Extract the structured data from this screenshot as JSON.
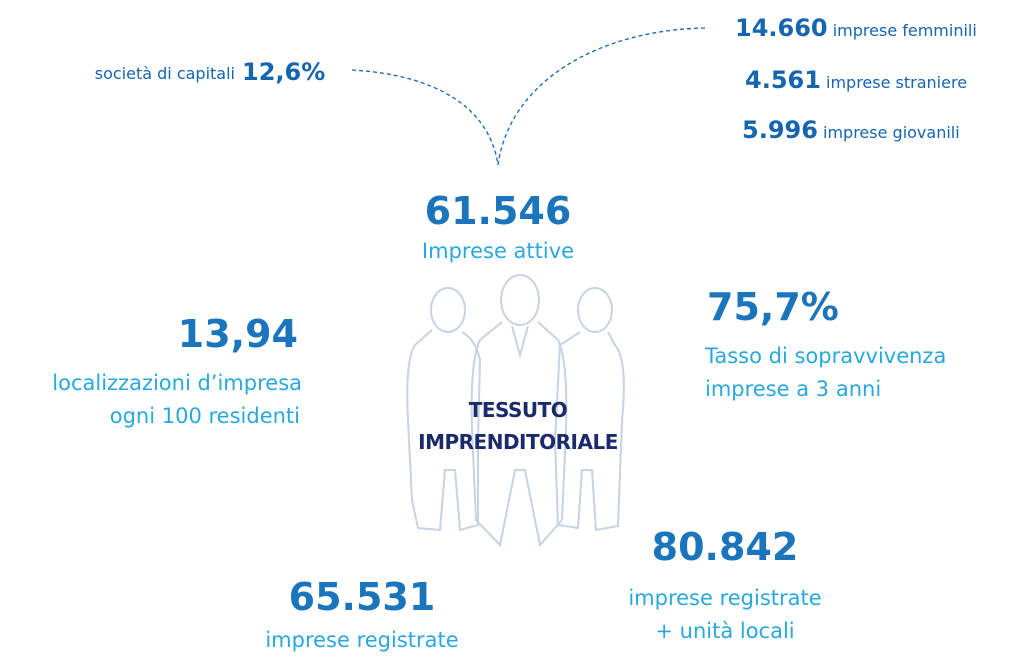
{
  "header": {
    "title_line1": "TESSUTO",
    "title_line2": "IMPRENDITORIALE"
  },
  "top_left": {
    "label": "società di capitali",
    "value": "12,6%"
  },
  "top_right": [
    {
      "value": "14.660",
      "label": "imprese femminili"
    },
    {
      "value": "4.561",
      "label": "imprese straniere"
    },
    {
      "value": "5.996",
      "label": "imprese giovanili"
    }
  ],
  "stats": {
    "active": {
      "value": "61.546",
      "label": "Imprese attive"
    },
    "density": {
      "value": "13,94",
      "label_line1": "localizzazioni d’impresa",
      "label_line2": "ogni 100 residenti"
    },
    "survival": {
      "value": "75,7%",
      "label_line1": "Tasso di sopravvivenza",
      "label_line2": "imprese a 3 anni"
    },
    "local_units": {
      "value": "80.842",
      "label_line1": "imprese registrate",
      "label_line2": "+ unità locali"
    },
    "registered": {
      "value": "65.531",
      "label_line1": "imprese registrate"
    }
  }
}
